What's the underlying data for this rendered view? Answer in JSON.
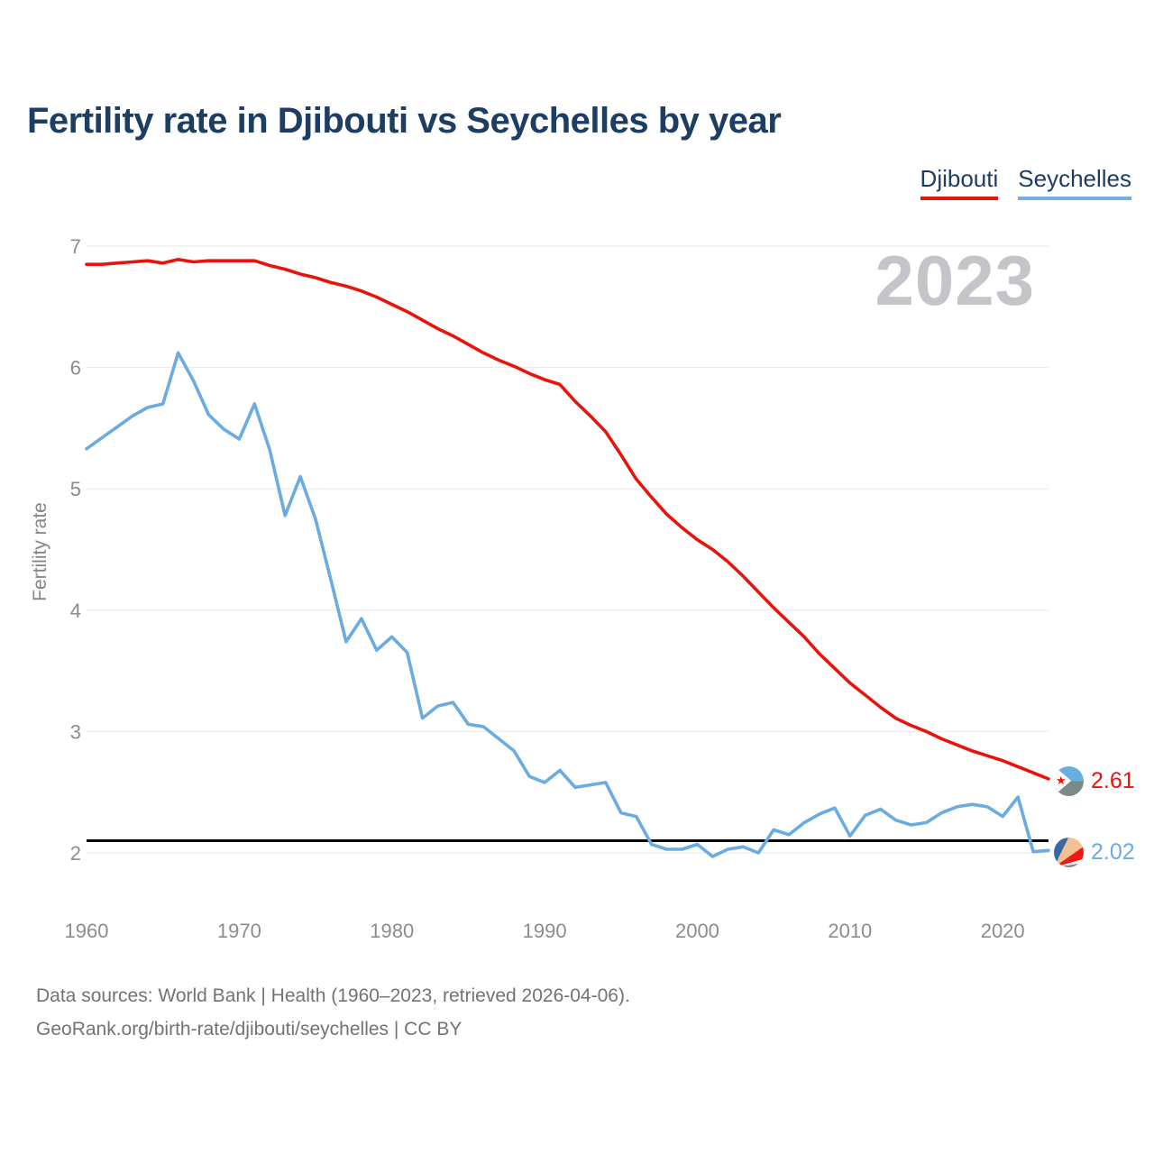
{
  "page": {
    "title": "Fertility rate in Djibouti vs Seychelles by year",
    "watermark": "2023"
  },
  "legend": {
    "items": [
      {
        "label": "Djibouti",
        "color": "#e8140c"
      },
      {
        "label": "Seychelles",
        "color": "#74b0e6"
      }
    ]
  },
  "end_labels": [
    {
      "series": "Djibouti",
      "value": "2.61",
      "color": "#e8140c",
      "flag_icon": "djibouti-flag-icon"
    },
    {
      "series": "Seychelles",
      "value": "2.02",
      "color": "#6aabe2",
      "flag_icon": "seychelles-flag-icon"
    }
  ],
  "footer": {
    "line1": "Data sources: World Bank | Health (1960–2023, retrieved 2026-04-06).",
    "line2": "GeoRank.org/birth-rate/djibouti/seychelles | CC BY"
  },
  "chart_data": {
    "type": "line",
    "title": "Fertility rate in Djibouti vs Seychelles by year",
    "xlabel": "",
    "ylabel": "Fertility rate",
    "xlim": [
      1960,
      2023
    ],
    "ylim": [
      2,
      7
    ],
    "x_ticks": [
      1960,
      1970,
      1980,
      1990,
      2000,
      2010,
      2020
    ],
    "y_ticks": [
      2,
      3,
      4,
      5,
      6,
      7
    ],
    "grid": "horizontal",
    "legend_position": "top-right",
    "annotations": {
      "watermark": "2023",
      "replacement_line": {
        "value": 2.1,
        "color": "#000000"
      }
    },
    "x": [
      1960,
      1961,
      1962,
      1963,
      1964,
      1965,
      1966,
      1967,
      1968,
      1969,
      1970,
      1971,
      1972,
      1973,
      1974,
      1975,
      1976,
      1977,
      1978,
      1979,
      1980,
      1981,
      1982,
      1983,
      1984,
      1985,
      1986,
      1987,
      1988,
      1989,
      1990,
      1991,
      1992,
      1993,
      1994,
      1995,
      1996,
      1997,
      1998,
      1999,
      2000,
      2001,
      2002,
      2003,
      2004,
      2005,
      2006,
      2007,
      2008,
      2009,
      2010,
      2011,
      2012,
      2013,
      2014,
      2015,
      2016,
      2017,
      2018,
      2019,
      2020,
      2021,
      2022,
      2023
    ],
    "series": [
      {
        "name": "Djibouti",
        "color": "#e8140c",
        "end_value": 2.61,
        "values": [
          6.85,
          6.85,
          6.86,
          6.87,
          6.88,
          6.86,
          6.89,
          6.87,
          6.88,
          6.88,
          6.88,
          6.88,
          6.84,
          6.81,
          6.77,
          6.74,
          6.7,
          6.67,
          6.63,
          6.58,
          6.52,
          6.46,
          6.39,
          6.32,
          6.26,
          6.19,
          6.12,
          6.06,
          6.01,
          5.95,
          5.9,
          5.86,
          5.72,
          5.6,
          5.47,
          5.28,
          5.08,
          4.93,
          4.79,
          4.68,
          4.58,
          4.5,
          4.4,
          4.28,
          4.15,
          4.02,
          3.9,
          3.78,
          3.64,
          3.52,
          3.4,
          3.3,
          3.2,
          3.11,
          3.05,
          3.0,
          2.94,
          2.89,
          2.84,
          2.8,
          2.76,
          2.71,
          2.66,
          2.61
        ]
      },
      {
        "name": "Seychelles",
        "color": "#6aabe2",
        "end_value": 2.02,
        "values": [
          5.33,
          5.42,
          5.51,
          5.6,
          5.67,
          5.7,
          6.12,
          5.89,
          5.61,
          5.49,
          5.41,
          5.7,
          5.32,
          4.78,
          5.1,
          4.75,
          4.25,
          3.74,
          3.93,
          3.67,
          3.78,
          3.65,
          3.11,
          3.21,
          3.24,
          3.06,
          3.04,
          2.94,
          2.84,
          2.63,
          2.58,
          2.68,
          2.54,
          2.56,
          2.58,
          2.33,
          2.3,
          2.07,
          2.03,
          2.03,
          2.07,
          1.97,
          2.03,
          2.05,
          2.0,
          2.19,
          2.15,
          2.25,
          2.32,
          2.37,
          2.14,
          2.31,
          2.36,
          2.27,
          2.23,
          2.25,
          2.33,
          2.38,
          2.4,
          2.38,
          2.3,
          2.46,
          2.01,
          2.02
        ]
      }
    ]
  }
}
